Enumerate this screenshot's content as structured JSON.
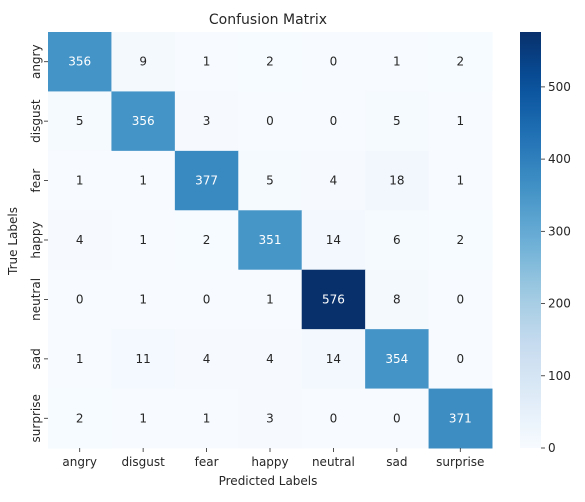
{
  "chart_data": {
    "type": "heatmap",
    "title": "Confusion Matrix",
    "xlabel": "Predicted Labels",
    "ylabel": "True Labels",
    "x_categories": [
      "angry",
      "disgust",
      "fear",
      "happy",
      "neutral",
      "sad",
      "surprise"
    ],
    "y_categories": [
      "angry",
      "disgust",
      "fear",
      "happy",
      "neutral",
      "sad",
      "surprise"
    ],
    "values": [
      [
        356,
        9,
        1,
        2,
        0,
        1,
        2
      ],
      [
        5,
        356,
        3,
        0,
        0,
        5,
        1
      ],
      [
        1,
        1,
        377,
        5,
        4,
        18,
        1
      ],
      [
        4,
        1,
        2,
        351,
        14,
        6,
        2
      ],
      [
        0,
        1,
        0,
        1,
        576,
        8,
        0
      ],
      [
        1,
        11,
        4,
        4,
        14,
        354,
        0
      ],
      [
        2,
        1,
        1,
        3,
        0,
        0,
        371
      ]
    ],
    "vmin": 0,
    "vmax": 576,
    "colormap": "Blues",
    "colorbar_ticks": [
      0,
      100,
      200,
      300,
      400,
      500
    ]
  }
}
